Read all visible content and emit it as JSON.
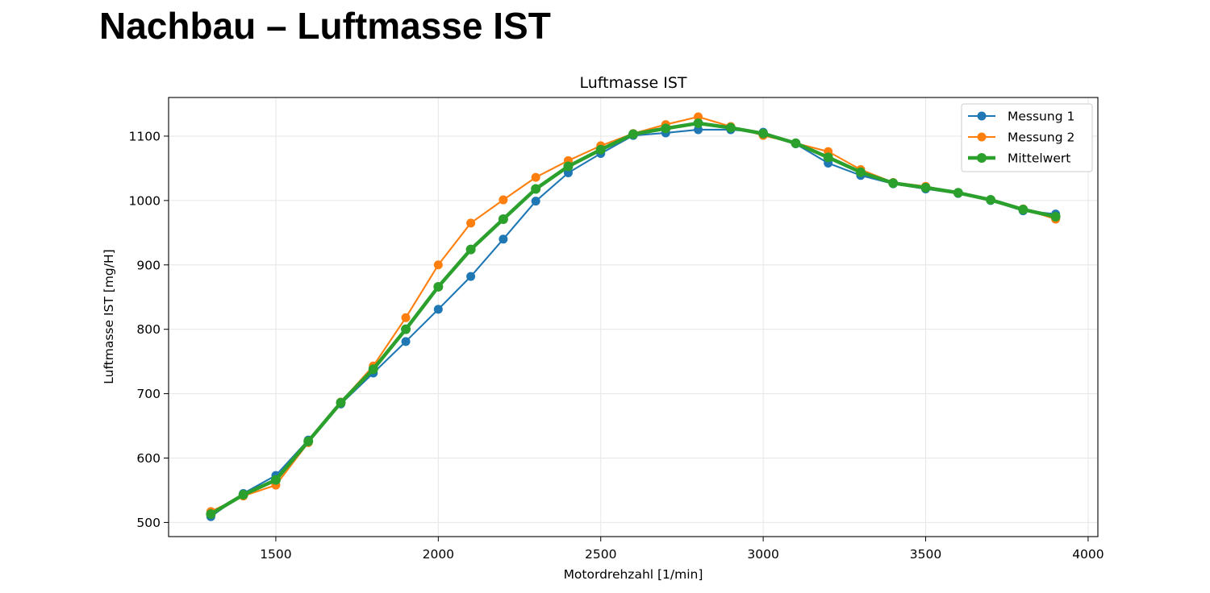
{
  "page": {
    "heading": "Nachbau – Luftmasse IST"
  },
  "chart_data": {
    "type": "line",
    "title": "Luftmasse IST",
    "xlabel": "Motordrehzahl [1/min]",
    "ylabel": "Luftmasse IST [mg/H]",
    "xlim": [
      1170,
      4030
    ],
    "ylim": [
      478,
      1160
    ],
    "xticks": [
      1500,
      2000,
      2500,
      3000,
      3500,
      4000
    ],
    "yticks": [
      500,
      600,
      700,
      800,
      900,
      1000,
      1100
    ],
    "grid": true,
    "legend_position": "top-right",
    "x": [
      1300,
      1400,
      1500,
      1600,
      1700,
      1800,
      1900,
      2000,
      2100,
      2200,
      2300,
      2400,
      2500,
      2600,
      2700,
      2800,
      2900,
      3000,
      3100,
      3200,
      3300,
      3400,
      3500,
      3600,
      3700,
      3800,
      3900
    ],
    "series": [
      {
        "name": "Messung 1",
        "color": "#1f77b4",
        "line_width": "thin",
        "values": [
          509,
          545,
          573,
          628,
          684,
          732,
          781,
          831,
          882,
          940,
          999,
          1043,
          1073,
          1101,
          1105,
          1110,
          1110,
          1106,
          1088,
          1058,
          1039,
          1026,
          1018,
          1011,
          1000,
          984,
          979
        ]
      },
      {
        "name": "Messung 2",
        "color": "#ff7f0e",
        "line_width": "thin",
        "values": [
          517,
          541,
          558,
          624,
          687,
          743,
          818,
          900,
          965,
          1001,
          1036,
          1062,
          1085,
          1104,
          1118,
          1130,
          1115,
          1101,
          1089,
          1076,
          1048,
          1028,
          1022,
          1012,
          1001,
          987,
          971
        ]
      },
      {
        "name": "Mittelwert",
        "color": "#2ca02c",
        "line_width": "thick",
        "values": [
          513,
          543,
          566,
          626,
          686,
          738,
          800,
          866,
          924,
          971,
          1018,
          1053,
          1079,
          1103,
          1112,
          1120,
          1113,
          1104,
          1089,
          1067,
          1044,
          1027,
          1020,
          1012,
          1001,
          986,
          975
        ]
      }
    ]
  }
}
